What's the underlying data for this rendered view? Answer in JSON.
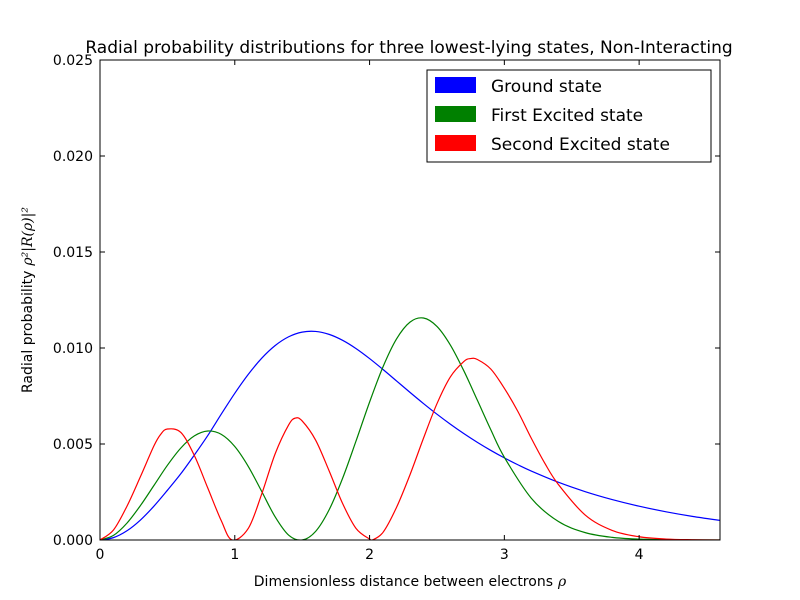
{
  "chart_data": {
    "type": "line",
    "title": "Radial probability distributions for three lowest-lying states, Non-Interacting",
    "xlabel": "Dimensionless distance between electrons",
    "xlabel_symbol": "ρ",
    "ylabel": "Radial probability",
    "ylabel_symbol": "ρ²|R(ρ)|²",
    "xlim": [
      0,
      4.6
    ],
    "ylim": [
      0,
      0.025
    ],
    "x_ticks": [
      "0",
      "1",
      "2",
      "3",
      "4"
    ],
    "y_ticks": [
      "0.000",
      "0.005",
      "0.010",
      "0.015",
      "0.020",
      "0.025"
    ],
    "grid": false,
    "legend_position": "top-right",
    "series": [
      {
        "name": "Ground state",
        "color": "#0000ff",
        "x": [
          0,
          0.1,
          0.2,
          0.3,
          0.4,
          0.5,
          0.6,
          0.7,
          0.8,
          0.9,
          1.0,
          1.1,
          1.2,
          1.3,
          1.4,
          1.5,
          1.6,
          1.7,
          1.8,
          1.9,
          2.0,
          2.1,
          2.2,
          2.3,
          2.4,
          2.5,
          2.6,
          2.7,
          2.8,
          2.9,
          3.0,
          3.1,
          3.2,
          3.4,
          3.6,
          3.8,
          4.0,
          4.2,
          4.4,
          4.6
        ],
        "values": [
          0,
          0.000124,
          0.00048,
          0.00104,
          0.001761,
          0.002588,
          0.003455,
          0.004426,
          0.005446,
          0.006558,
          0.00764,
          0.008626,
          0.009468,
          0.010129,
          0.010585,
          0.010827,
          0.010862,
          0.01071,
          0.0104,
          0.009968,
          0.00945,
          0.00888,
          0.008285,
          0.007689,
          0.007108,
          0.006552,
          0.006029,
          0.00554,
          0.005085,
          0.004665,
          0.004277,
          0.00392,
          0.003591,
          0.003009,
          0.002519,
          0.002107,
          0.00176,
          0.00147,
          0.001225,
          0.00102
        ]
      },
      {
        "name": "First Excited state",
        "color": "#008000",
        "x": [
          0,
          0.1,
          0.2,
          0.3,
          0.4,
          0.5,
          0.6,
          0.7,
          0.8,
          0.9,
          1.0,
          1.1,
          1.2,
          1.3,
          1.4,
          1.5,
          1.6,
          1.7,
          1.8,
          1.9,
          2.0,
          2.1,
          2.2,
          2.3,
          2.4,
          2.5,
          2.6,
          2.7,
          2.8,
          2.9,
          3.0,
          3.2,
          3.4,
          3.6,
          3.8,
          4.0,
          4.2,
          4.4,
          4.6
        ],
        "values": [
          0,
          0.00024,
          0.00088,
          0.001794,
          0.002839,
          0.00389,
          0.004792,
          0.005421,
          0.005678,
          0.0055,
          0.004869,
          0.003833,
          0.002525,
          0.0012,
          0.00025,
          0.0,
          0.00045,
          0.001574,
          0.003215,
          0.005164,
          0.007181,
          0.009024,
          0.010472,
          0.011349,
          0.011562,
          0.011124,
          0.010149,
          0.008805,
          0.007276,
          0.005735,
          0.004309,
          0.002176,
          0.000967,
          0.000384,
          0.000137,
          4.4e-05,
          1.3e-05,
          3e-06,
          1e-06
        ]
      },
      {
        "name": "Second Excited state",
        "color": "#ff0000",
        "x": [
          0,
          0.1,
          0.2,
          0.3,
          0.4,
          0.45,
          0.5,
          0.6,
          0.7,
          0.8,
          0.9,
          0.98,
          1.1,
          1.2,
          1.3,
          1.4,
          1.45,
          1.5,
          1.6,
          1.7,
          1.8,
          1.9,
          2.0,
          2.02,
          2.1,
          2.2,
          2.3,
          2.4,
          2.5,
          2.6,
          2.7,
          2.75,
          2.8,
          2.9,
          3.0,
          3.1,
          3.2,
          3.3,
          3.4,
          3.6,
          3.8,
          4.0,
          4.2,
          4.4,
          4.6
        ],
        "values": [
          0,
          0.00052,
          0.00176,
          0.0033,
          0.0049,
          0.0055,
          0.00578,
          0.0056,
          0.0044,
          0.0027,
          0.001,
          0.0,
          0.0006,
          0.0024,
          0.0045,
          0.006,
          0.00635,
          0.0062,
          0.0052,
          0.0036,
          0.0019,
          0.0006,
          5e-05,
          0.0,
          0.0004,
          0.0017,
          0.0034,
          0.0053,
          0.0071,
          0.0085,
          0.0093,
          0.00945,
          0.0094,
          0.0089,
          0.0079,
          0.0067,
          0.0053,
          0.004,
          0.0029,
          0.0013,
          0.0005,
          0.00017,
          5e-05,
          1.5e-05,
          4e-06
        ]
      }
    ]
  }
}
